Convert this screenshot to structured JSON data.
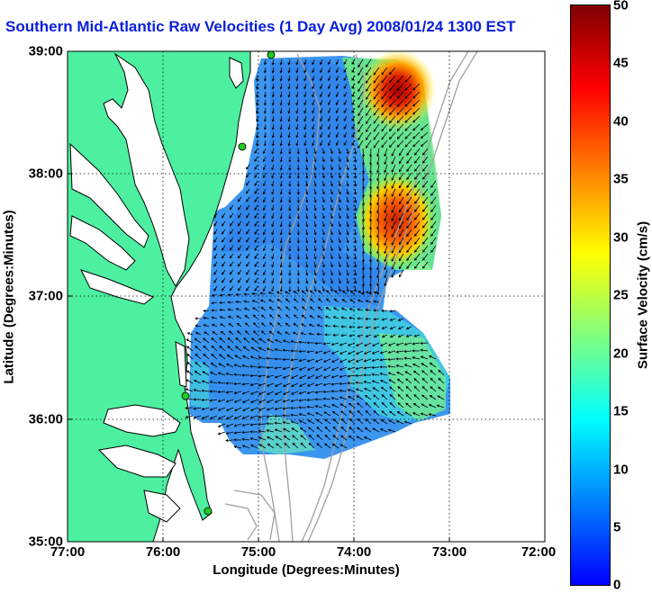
{
  "title": "Southern Mid-Atlantic Raw Velocities (1 Day Avg) 2008/01/24 1300 EST",
  "x_axis": {
    "label": "Longitude (Degrees:Minutes)",
    "ticks": [
      "77:00",
      "76:00",
      "75:00",
      "74:00",
      "73:00",
      "72:00"
    ]
  },
  "y_axis": {
    "label": "Latitude (Degrees:Minutes)",
    "ticks": [
      "39:00",
      "38:00",
      "37:00",
      "36:00",
      "35:00"
    ]
  },
  "colorbar": {
    "label": "Surface Velocity (cm/s)",
    "ticks": [
      "50",
      "45",
      "40",
      "35",
      "30",
      "25",
      "20",
      "15",
      "10",
      "5",
      "0"
    ],
    "range": [
      0,
      50
    ],
    "colormap": "jet"
  },
  "colors": {
    "land": "#4df0a0",
    "title": "#0a1edc",
    "bathymetry": "#a0a0a0",
    "station": "#22cc22"
  },
  "map_extent": {
    "lon": [
      -77,
      -72
    ],
    "lat": [
      35,
      39
    ]
  }
}
